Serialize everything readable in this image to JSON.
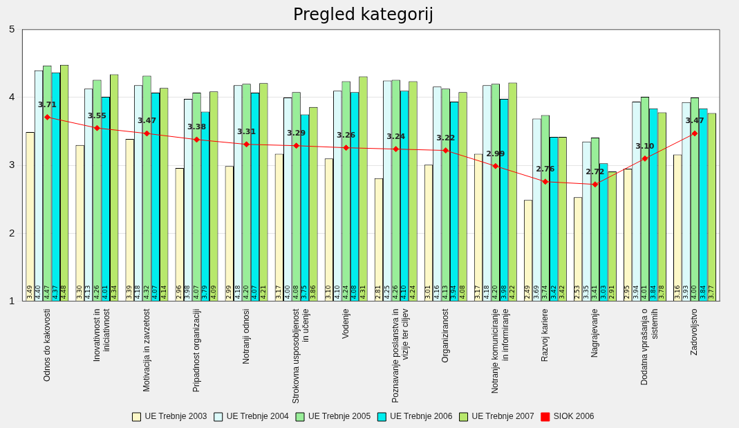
{
  "chart_data": {
    "type": "bar",
    "title": "Pregled kategorij",
    "categories": [
      "Odnos do kakovosti",
      "Inovativnost in iniciativnost",
      "Motivacija in zavzetost",
      "Pripadnost organizaciji",
      "Notranji odnosi",
      "Strokovna usposobljenost in učenje",
      "Vodenje",
      "Poznavanje poslanstva in vizije ter ciljev",
      "Organiziranost",
      "Notranje komuniciranje in informiranje",
      "Razvoj kariere",
      "Nagrajevanje",
      "Dodatna vprašanja o sistemih",
      "Zadovoljstvo"
    ],
    "series": [
      {
        "name": "UE Trebnje 2003",
        "color": "#fdf8c8",
        "values": [
          3.49,
          3.3,
          3.39,
          2.96,
          2.99,
          3.17,
          3.1,
          2.81,
          3.01,
          3.17,
          2.49,
          2.53,
          2.95,
          3.16
        ],
        "value_labels": [
          "3.49",
          "3.30",
          "3.39",
          "2.96",
          "2.99",
          "3.17",
          "3.10",
          "2.81",
          "3.01",
          "3.17",
          "2.49",
          "2.53",
          "2.95",
          "3.16"
        ]
      },
      {
        "name": "UE Trebnje 2004",
        "color": "#dcfafa",
        "values": [
          4.4,
          4.13,
          4.18,
          3.98,
          4.18,
          4.0,
          4.1,
          4.25,
          4.16,
          4.18,
          3.69,
          3.35,
          3.94,
          3.93
        ],
        "value_labels": [
          "4.40",
          "4.13",
          "4.18",
          "3.98",
          "4.18",
          "4.00",
          "4.10",
          "4.25",
          "4.16",
          "4.18",
          "3.69",
          "3.35",
          "3.94",
          "3.93"
        ]
      },
      {
        "name": "UE Trebnje 2005",
        "color": "#99ee99",
        "values": [
          4.47,
          4.26,
          4.32,
          4.07,
          4.2,
          4.08,
          4.24,
          4.26,
          4.13,
          4.2,
          3.74,
          3.41,
          4.01,
          4.0
        ],
        "value_labels": [
          "4.47",
          "4.26",
          "4.32",
          "4.07",
          "4.20",
          "4.08",
          "4.24",
          "4.26",
          "4.13",
          "4.20",
          "3.74",
          "3.41",
          "4.01",
          "4.00"
        ]
      },
      {
        "name": "UE Trebnje 2006",
        "color": "#00eeee",
        "values": [
          4.37,
          4.01,
          4.07,
          3.79,
          4.07,
          3.75,
          4.08,
          4.1,
          3.94,
          3.98,
          3.42,
          3.03,
          3.84,
          3.84
        ],
        "value_labels": [
          "4.37",
          "4.01",
          "4.07",
          "3.79",
          "4.07",
          "3.75",
          "4.08",
          "4.10",
          "3.94",
          "3.98",
          "3.42",
          "3.03",
          "3.84",
          "3.84"
        ]
      },
      {
        "name": "UE Trebnje 2007",
        "color": "#b8e86c",
        "values": [
          4.48,
          4.34,
          4.14,
          4.09,
          4.21,
          3.86,
          4.31,
          4.24,
          4.08,
          4.22,
          3.42,
          2.91,
          3.78,
          3.77
        ],
        "value_labels": [
          "4.48",
          "4.34",
          "4.14",
          "4.09",
          "4.21",
          "3.86",
          "4.31",
          "4.24",
          "4.08",
          "4.22",
          "3.42",
          "2.91",
          "3.78",
          "3.77"
        ]
      },
      {
        "name": "SIOK 2006",
        "type": "line",
        "color": "#ff0000",
        "values": [
          3.71,
          3.55,
          3.47,
          3.38,
          3.31,
          3.29,
          3.26,
          3.24,
          3.22,
          2.99,
          2.76,
          2.72,
          3.1,
          3.47
        ],
        "value_labels": [
          "3.71",
          "3.55",
          "3.47",
          "3.38",
          "3.31",
          "3.29",
          "3.26",
          "3.24",
          "3.22",
          "2.99",
          "2.76",
          "2.72",
          "3.10",
          "3.47"
        ]
      }
    ],
    "ylim": [
      1,
      5
    ],
    "yticks": [
      1,
      2,
      3,
      4,
      5
    ],
    "grid": "y",
    "legend": "bottom",
    "marker": "diamond",
    "line_style": "solid"
  }
}
